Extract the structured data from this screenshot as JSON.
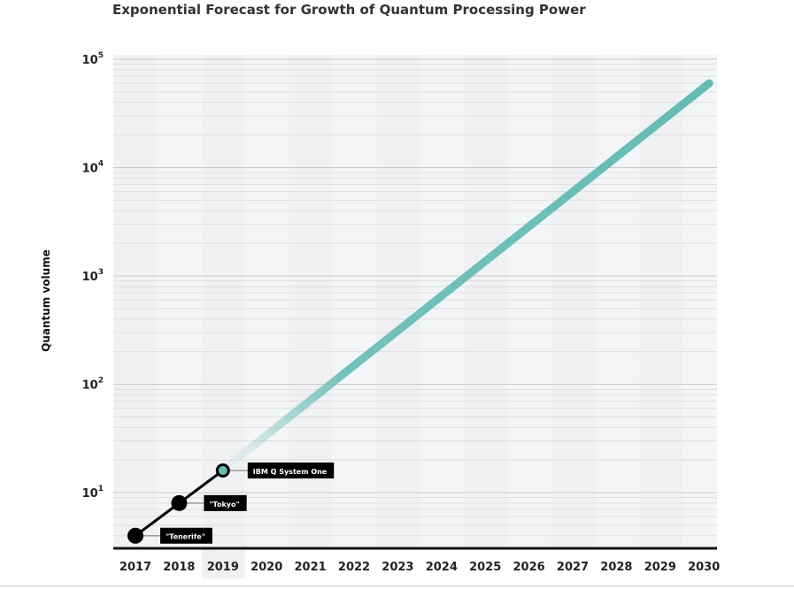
{
  "chart_data": {
    "type": "line",
    "title": "Exponential Forecast for Growth of Quantum Processing Power",
    "xlabel": "",
    "ylabel": "Quantum volume",
    "y_scale": "log",
    "ylim": [
      3,
      100000
    ],
    "y_ticks": [
      {
        "base": "10",
        "exp": "1",
        "value": 10
      },
      {
        "base": "10",
        "exp": "2",
        "value": 100
      },
      {
        "base": "10",
        "exp": "3",
        "value": 1000
      },
      {
        "base": "10",
        "exp": "4",
        "value": 10000
      },
      {
        "base": "10",
        "exp": "5",
        "value": 100000
      }
    ],
    "x_ticks": [
      "2017",
      "2018",
      "2019",
      "2020",
      "2021",
      "2022",
      "2023",
      "2024",
      "2025",
      "2026",
      "2027",
      "2028",
      "2029",
      "2030"
    ],
    "grid": true,
    "series": [
      {
        "kind": "historical",
        "color": "#000000",
        "points": [
          {
            "x": 2017,
            "y": 4,
            "label": "\"Tenerife\""
          },
          {
            "x": 2018,
            "y": 8,
            "label": "\"Tokyo\""
          },
          {
            "x": 2019,
            "y": 16,
            "label": "IBM Q System One"
          }
        ]
      },
      {
        "kind": "forecast",
        "color": "#63bdb4",
        "points": [
          {
            "x": 2019,
            "y": 16
          },
          {
            "x": 2030,
            "y": 60000
          }
        ]
      }
    ]
  }
}
